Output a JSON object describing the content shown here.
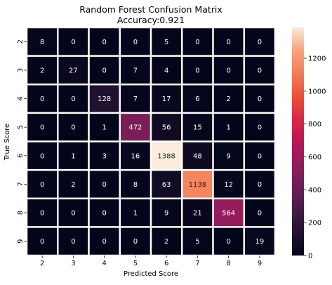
{
  "chart_data": {
    "type": "heatmap",
    "title": "Random Forest Confusion Matrix",
    "subtitle": "Accuracy:0.921",
    "xlabel": "Predicted Score",
    "ylabel": "True Score",
    "x_categories": [
      "2",
      "3",
      "4",
      "5",
      "6",
      "7",
      "8",
      "9"
    ],
    "y_categories": [
      "2",
      "3",
      "4",
      "5",
      "6",
      "7",
      "8",
      "9"
    ],
    "values": [
      [
        8,
        0,
        0,
        0,
        5,
        0,
        0,
        0
      ],
      [
        2,
        27,
        0,
        7,
        4,
        0,
        0,
        0
      ],
      [
        0,
        0,
        128,
        7,
        17,
        6,
        2,
        0
      ],
      [
        0,
        0,
        1,
        472,
        56,
        15,
        1,
        0
      ],
      [
        0,
        1,
        3,
        16,
        1388,
        48,
        9,
        0
      ],
      [
        0,
        2,
        0,
        8,
        63,
        1138,
        12,
        0
      ],
      [
        0,
        0,
        0,
        1,
        9,
        21,
        564,
        0
      ],
      [
        0,
        0,
        0,
        0,
        2,
        5,
        0,
        19
      ]
    ],
    "colorbar": {
      "range": [
        0,
        1388
      ],
      "ticks": [
        0,
        200,
        400,
        600,
        800,
        1000,
        1200
      ],
      "colormap": "rocket",
      "low_color": "#03051a",
      "high_color": "#faebdd"
    },
    "grid": false,
    "cell_separator_color": "#ffffff"
  }
}
